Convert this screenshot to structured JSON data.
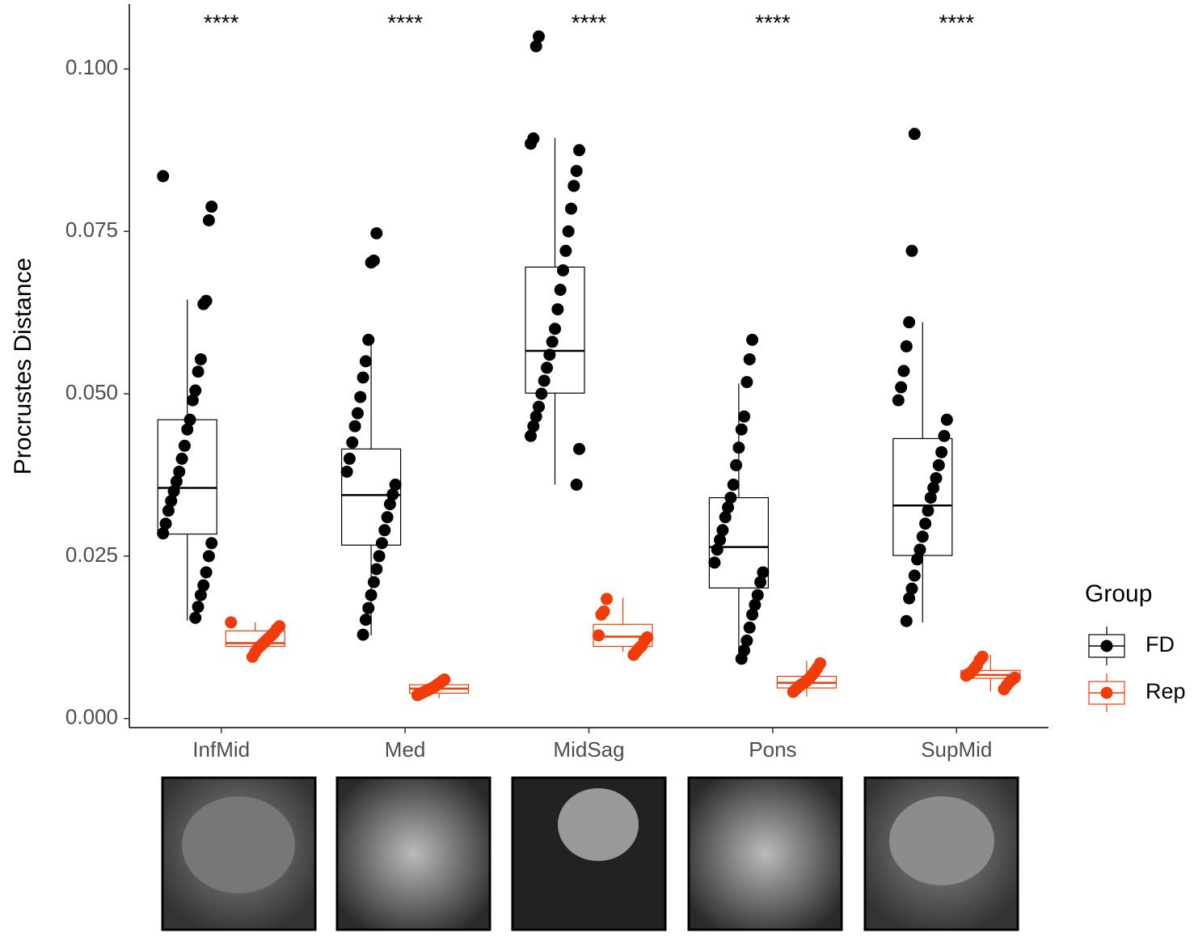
{
  "chart_data": {
    "type": "box",
    "y_label": "Procrustes Distance",
    "categories": [
      "InfMid",
      "Med",
      "MidSag",
      "Pons",
      "SupMid"
    ],
    "annotations": [
      "****",
      "****",
      "****",
      "****",
      "****"
    ],
    "ylim": [
      -0.0014,
      0.11
    ],
    "yticks": [
      {
        "value": 0,
        "label": "0.000"
      },
      {
        "value": 0.025,
        "label": "0.025"
      },
      {
        "value": 0.05,
        "label": "0.050"
      },
      {
        "value": 0.075,
        "label": "0.075"
      },
      {
        "value": 0.1,
        "label": "0.100"
      }
    ],
    "legend_title": "Group",
    "legend_position": "right",
    "series": [
      {
        "name": "FD",
        "color": "#000000",
        "whisker_high": [
          0.0645,
          0.0582,
          0.0894,
          0.0516,
          0.061
        ],
        "q3": [
          0.046,
          0.0415,
          0.0695,
          0.034,
          0.0431
        ],
        "median": [
          0.0355,
          0.0344,
          0.0566,
          0.0264,
          0.0328
        ],
        "q1": [
          0.0284,
          0.0267,
          0.0501,
          0.0201,
          0.0251
        ],
        "whisker_low": [
          0.0151,
          0.0128,
          0.036,
          0.0092,
          0.0148
        ],
        "points": [
          [
            0.0835,
            0.0788,
            0.0767,
            0.0643,
            0.0638,
            0.0553,
            0.0534,
            0.0505,
            0.049,
            0.046,
            0.0445,
            0.042,
            0.04,
            0.038,
            0.0365,
            0.035,
            0.0335,
            0.032,
            0.03,
            0.0285,
            0.027,
            0.025,
            0.0225,
            0.0205,
            0.019,
            0.0172,
            0.0155
          ],
          [
            0.0747,
            0.0705,
            0.0702,
            0.0583,
            0.055,
            0.0525,
            0.0495,
            0.047,
            0.045,
            0.0425,
            0.04,
            0.038,
            0.036,
            0.0345,
            0.033,
            0.031,
            0.029,
            0.027,
            0.025,
            0.023,
            0.021,
            0.019,
            0.017,
            0.0152,
            0.0129
          ],
          [
            0.105,
            0.1035,
            0.0893,
            0.0885,
            0.0875,
            0.0843,
            0.082,
            0.0785,
            0.075,
            0.072,
            0.069,
            0.066,
            0.063,
            0.06,
            0.058,
            0.056,
            0.054,
            0.052,
            0.05,
            0.048,
            0.0465,
            0.045,
            0.0435,
            0.0415,
            0.036
          ],
          [
            0.0583,
            0.0553,
            0.0518,
            0.0465,
            0.0445,
            0.0417,
            0.039,
            0.036,
            0.034,
            0.0325,
            0.031,
            0.029,
            0.0275,
            0.026,
            0.024,
            0.0225,
            0.021,
            0.019,
            0.0175,
            0.016,
            0.014,
            0.012,
            0.0105,
            0.0092
          ],
          [
            0.09,
            0.072,
            0.061,
            0.0573,
            0.0535,
            0.051,
            0.049,
            0.046,
            0.0435,
            0.041,
            0.039,
            0.037,
            0.0355,
            0.034,
            0.032,
            0.03,
            0.028,
            0.026,
            0.0245,
            0.022,
            0.02,
            0.0185,
            0.015
          ]
        ]
      },
      {
        "name": "Rep",
        "color": "#f03c0a",
        "whisker_high": [
          0.0148,
          0.0066,
          0.0186,
          0.0089,
          0.0098
        ],
        "q3": [
          0.0135,
          0.0052,
          0.0145,
          0.0065,
          0.0074
        ],
        "median": [
          0.0116,
          0.0046,
          0.0126,
          0.0055,
          0.0067
        ],
        "q1": [
          0.0111,
          0.0039,
          0.0111,
          0.0047,
          0.0062
        ],
        "whisker_low": [
          0.0092,
          0.0031,
          0.0103,
          0.0034,
          0.0042
        ],
        "points": [
          [
            0.0148,
            0.0142,
            0.0138,
            0.0132,
            0.0128,
            0.0124,
            0.012,
            0.0116,
            0.0112,
            0.0108,
            0.0102,
            0.0095
          ],
          [
            0.006,
            0.0057,
            0.0054,
            0.0051,
            0.0048,
            0.0046,
            0.0044,
            0.0042,
            0.004,
            0.0038,
            0.0036
          ],
          [
            0.0184,
            0.0165,
            0.016,
            0.0128,
            0.0125,
            0.012,
            0.0112,
            0.0108,
            0.0103,
            0.0098
          ],
          [
            0.0085,
            0.0078,
            0.0072,
            0.0067,
            0.0062,
            0.0058,
            0.0055,
            0.0052,
            0.0049,
            0.0045,
            0.0041
          ],
          [
            0.0095,
            0.009,
            0.0082,
            0.0077,
            0.0072,
            0.0069,
            0.0066,
            0.0063,
            0.006,
            0.0056,
            0.0051,
            0.0045
          ]
        ]
      }
    ]
  }
}
